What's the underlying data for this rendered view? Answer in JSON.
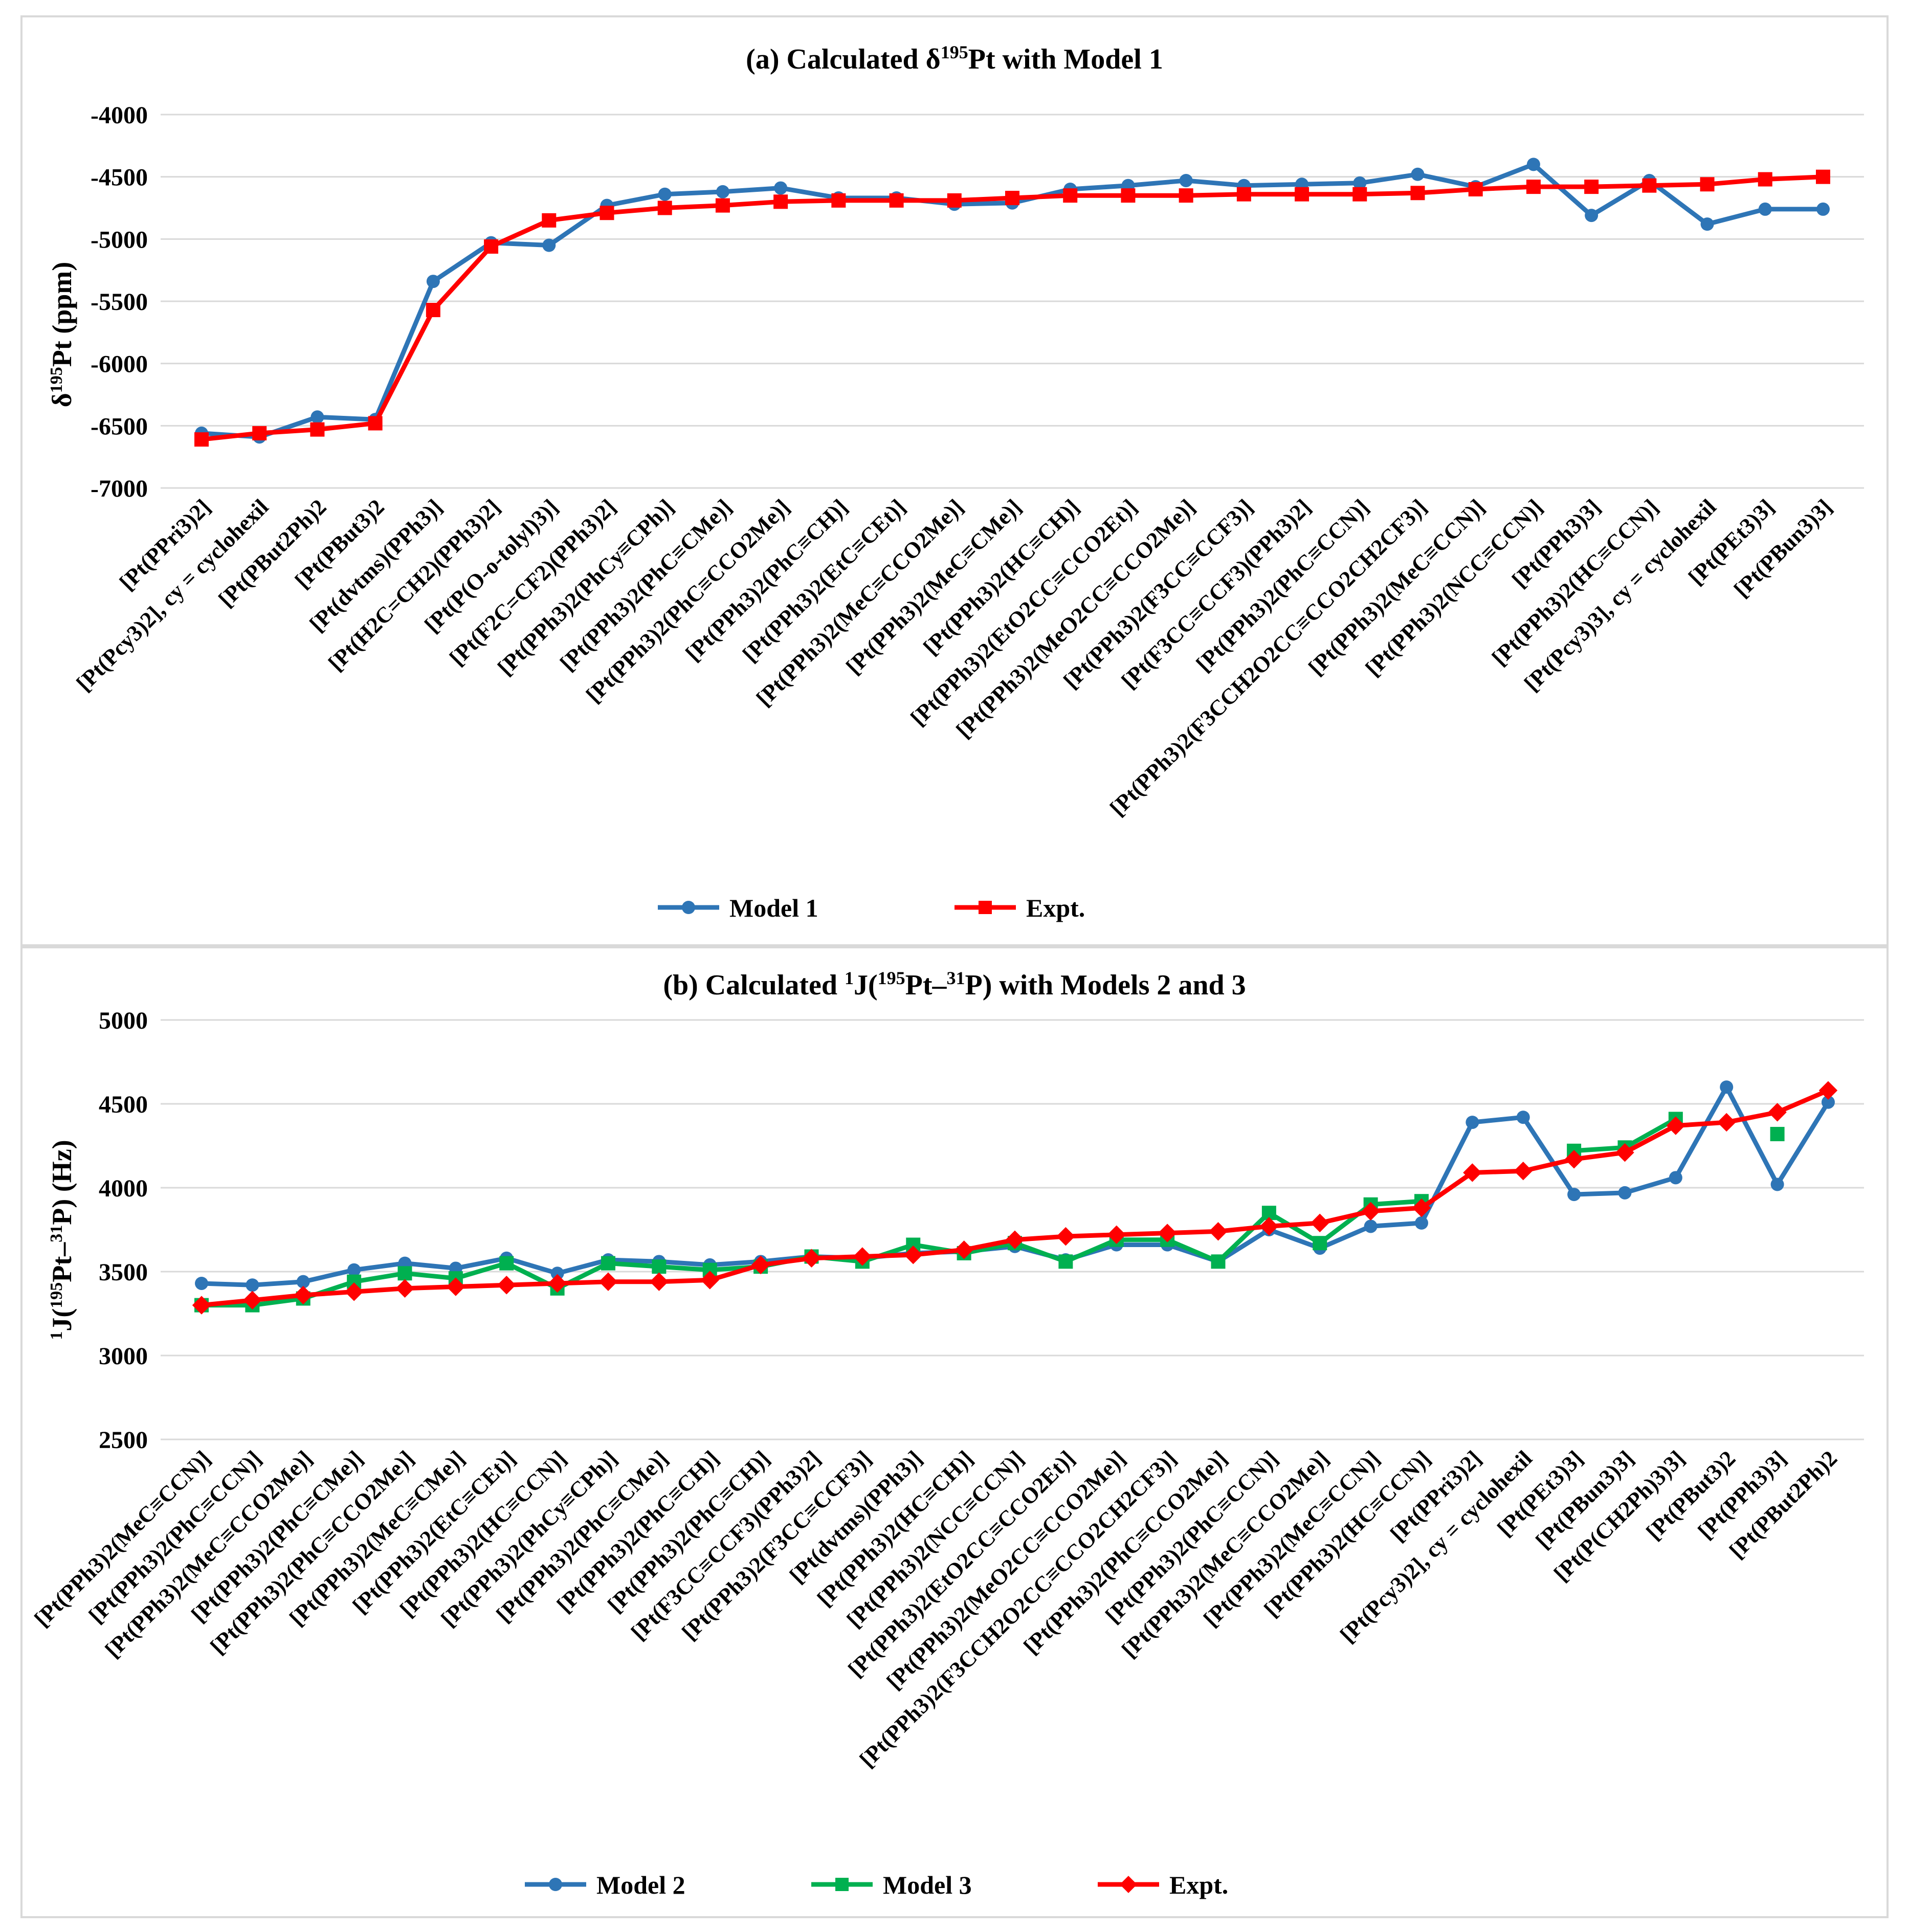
{
  "chart_data": [
    {
      "type": "line",
      "title_prefix": "(a) Calculated δ",
      "title_sup": "195",
      "title_suffix": "Pt with Model 1",
      "ylabel_prefix": "δ",
      "ylabel_sup": "195",
      "ylabel_suffix": "Pt (ppm)",
      "ylim": [
        -7000,
        -4000
      ],
      "yticks": [
        -4000,
        -4500,
        -5000,
        -5500,
        -6000,
        -6500,
        -7000
      ],
      "grid": true,
      "legend_position": "bottom-center",
      "categories": [
        "[Pt(PPri3)2]",
        "[Pt(Pcy3)2], cy = cyclohexil",
        "[Pt(PBut2Ph)2",
        "[Pt(PBut3)2",
        "[Pt(dvtms)(PPh3)]",
        "[Pt(H2C=CH2)(PPh3)2]",
        "[Pt(P(O-o-tolyl)3)]",
        "[Pt(F2C=CF2)(PPh3)2]",
        "[Pt(PPh3)2(PhCy≡CPh)]",
        "[Pt(PPh3)2(PhC≡CMe)]",
        "[Pt(PPh3)2(PhC≡CCO2Me)]",
        "[Pt(PPh3)2(PhC≡CH)]",
        "[Pt(PPh3)2(EtC≡CEt)]",
        "[Pt(PPh3)2(MeC≡CCO2Me)]",
        "[Pt(PPh3)2(MeC≡CMe)]",
        "[Pt(PPh3)2(HC≡CH)]",
        "[Pt(PPh3)2(EtO2CC≡CCO2Et)]",
        "[Pt(PPh3)2(MeO2CC≡CCO2Me)]",
        "[Pt(PPh3)2(F3CC≡CCF3)]",
        "[Pt(F3CC≡CCF3)(PPh3)2]",
        "[Pt(PPh3)2(PhC≡CCN)]",
        "[Pt(PPh3)2(F3CCH2O2CC≡CCO2CH2CF3)]",
        "[Pt(PPh3)2(MeC≡CCN)]",
        "[Pt(PPh3)2(NCC≡CCN)]",
        "[Pt(PPh3)3]",
        "[Pt(PPh3)2(HC≡CCN)]",
        "[Pt(Pcy3)3], cy = cyclohexil",
        "[Pt(PEt3)3]",
        "[Pt(PBun3)3]"
      ],
      "series": [
        {
          "name": "Model 1",
          "color": "#2E75B6",
          "marker": "circle",
          "values": [
            -6560,
            -6590,
            -6430,
            -6450,
            -5340,
            -5030,
            -5050,
            -4730,
            -4640,
            -4620,
            -4590,
            -4670,
            -4670,
            -4720,
            -4710,
            -4600,
            -4570,
            -4530,
            -4570,
            -4560,
            -4550,
            -4480,
            -4580,
            -4400,
            -4810,
            -4530,
            -4880,
            -4760,
            -4760
          ]
        },
        {
          "name": "Expt.",
          "color": "#FF0000",
          "marker": "square",
          "values": [
            -6610,
            -6560,
            -6530,
            -6480,
            -5570,
            -5060,
            -4850,
            -4790,
            -4750,
            -4730,
            -4700,
            -4690,
            -4690,
            -4690,
            -4670,
            -4650,
            -4650,
            -4650,
            -4640,
            -4640,
            -4640,
            -4630,
            -4600,
            -4580,
            -4580,
            -4570,
            -4560,
            -4520,
            -4500
          ]
        }
      ]
    },
    {
      "type": "line",
      "title_prefix": "(b) Calculated ",
      "title_sup1": "1",
      "title_mid1": "J(",
      "title_sup2": "195",
      "title_mid2": "Pt–",
      "title_sup3": "31",
      "title_suffix": "P) with Models 2 and 3",
      "ylabel_sup1": "1",
      "ylabel_mid1": "J(",
      "ylabel_sup2": "195",
      "ylabel_mid2": "Pt–",
      "ylabel_sup3": "31",
      "ylabel_suffix": "P) (Hz)",
      "ylim": [
        2500,
        5000
      ],
      "yticks": [
        5000,
        4500,
        4000,
        3500,
        3000,
        2500
      ],
      "grid": true,
      "legend_position": "bottom-center",
      "categories": [
        "[Pt(PPh3)2(MeC≡CCN)]",
        "[Pt(PPh3)2(PhC≡CCN)]",
        "[Pt(PPh3)2(MeC≡CCO2Me)]",
        "[Pt(PPh3)2(PhC≡CMe)]",
        "[Pt(PPh3)2(PhC≡CCO2Me)]",
        "[Pt(PPh3)2(MeC≡CMe)]",
        "[Pt(PPh3)2(EtC≡CEt)]",
        "[Pt(PPh3)2(HC≡CCN)]",
        "[Pt(PPh3)2(PhCy≡CPh)]",
        "[Pt(PPh3)2(PhC≡CMe)]",
        "[Pt(PPh3)2(PhC≡CH)]",
        "[Pt(PPh3)2(PhC≡CH)]",
        "[Pt(F3CC≡CCF3)(PPh3)2]",
        "[Pt(PPh3)2(F3CC≡CCF3)]",
        "[Pt(dvtms)(PPh3)]",
        "[Pt(PPh3)2(HC≡CH)]",
        "[Pt(PPh3)2(NCC≡CCN)]",
        "[Pt(PPh3)2(EtO2CC≡CCO2Et)]",
        "[Pt(PPh3)2(MeO2CC≡CCO2Me)]",
        "[Pt(PPh3)2(F3CCH2O2CC≡CCO2CH2CF3)]",
        "[Pt(PPh3)2(PhC≡CCO2Me)]",
        "[Pt(PPh3)2(PhC≡CCN)]",
        "[Pt(PPh3)2(MeC≡CCO2Me)]",
        "[Pt(PPh3)2(MeC≡CCN)]",
        "[Pt(PPh3)2(HC≡CCN)]",
        "[Pt(PPri3)2]",
        "[Pt(Pcy3)2], cy = cyclohexil",
        "[Pt(PEt3)3]",
        "[Pt(PBun3)3]",
        "[Pt(P(CH2Ph)3)3]",
        "[Pt(PBut3)2",
        "[Pt(PPh3)3]",
        "[Pt(PBut2Ph)2"
      ],
      "series": [
        {
          "name": "Model 2",
          "color": "#2E75B6",
          "marker": "circle",
          "values": [
            3430,
            3420,
            3440,
            3510,
            3550,
            3520,
            3580,
            3490,
            3570,
            3560,
            3540,
            3560,
            3590,
            3580,
            3610,
            3620,
            3650,
            3570,
            3660,
            3660,
            3560,
            3750,
            3640,
            3770,
            3790,
            4390,
            4420,
            3960,
            3970,
            4060,
            4600,
            4020,
            4510
          ]
        },
        {
          "name": "Model 3",
          "color": "#00B050",
          "marker": "square",
          "values": [
            3300,
            3300,
            3340,
            3440,
            3490,
            3460,
            3550,
            3400,
            3550,
            3530,
            3510,
            3530,
            3590,
            3560,
            3660,
            3610,
            3670,
            3560,
            3690,
            3690,
            3560,
            3850,
            3670,
            3900,
            3920,
            null,
            null,
            4220,
            4240,
            4410,
            null,
            4320,
            null
          ]
        },
        {
          "name": "Expt.",
          "color": "#FF0000",
          "marker": "diamond",
          "values": [
            3300,
            3330,
            3360,
            3380,
            3400,
            3410,
            3420,
            3430,
            3440,
            3440,
            3450,
            3540,
            3580,
            3590,
            3600,
            3630,
            3690,
            3710,
            3720,
            3730,
            3740,
            3770,
            3790,
            3860,
            3880,
            4090,
            4100,
            4170,
            4210,
            4370,
            4390,
            4450,
            4580
          ]
        }
      ]
    }
  ]
}
